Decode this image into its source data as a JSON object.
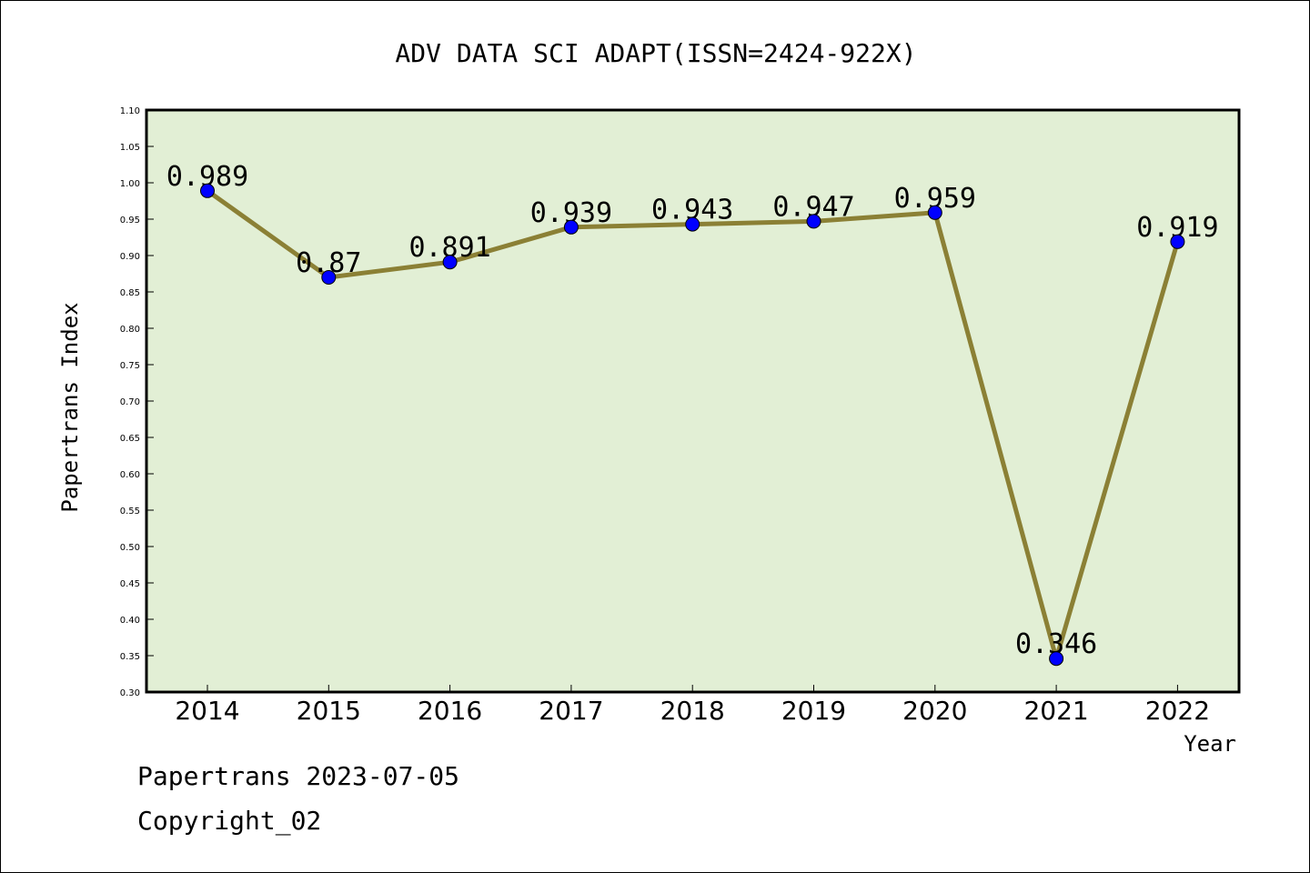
{
  "chart_data": {
    "type": "line",
    "title": "ADV DATA SCI ADAPT(ISSN=2424-922X)",
    "xlabel": "Year",
    "ylabel": "Papertrans Index",
    "categories": [
      "2014",
      "2015",
      "2016",
      "2017",
      "2018",
      "2019",
      "2020",
      "2021",
      "2022"
    ],
    "series": [
      {
        "values": [
          0.989,
          0.87,
          0.891,
          0.939,
          0.943,
          0.947,
          0.959,
          0.346,
          0.919
        ],
        "labels": [
          "0.989",
          "0.87",
          "0.891",
          "0.939",
          "0.943",
          "0.947",
          "0.959",
          "0.346",
          "0.919"
        ],
        "line_color": "#8b8035",
        "marker_color": "#0000ff"
      }
    ],
    "ylim": [
      0.3,
      1.1
    ],
    "yticks": [
      "0.30",
      "0.35",
      "0.40",
      "0.45",
      "0.50",
      "0.55",
      "0.60",
      "0.65",
      "0.70",
      "0.75",
      "0.80",
      "0.85",
      "0.90",
      "0.95",
      "1.00",
      "1.05",
      "1.10"
    ],
    "grid": false,
    "plot_background": "#e2efd5"
  },
  "footer": {
    "line1": "Papertrans 2023-07-05",
    "line2": "Copyright_02"
  }
}
